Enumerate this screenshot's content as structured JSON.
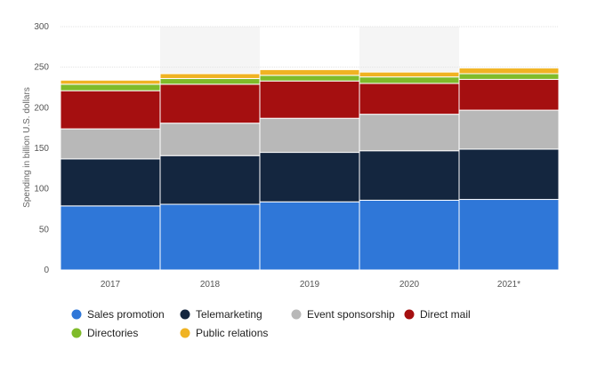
{
  "chart_data": {
    "type": "bar",
    "stacked": true,
    "categories": [
      "2017",
      "2018",
      "2019",
      "2020",
      "2021*"
    ],
    "ylabel": "Spending in billion U.S. dollars",
    "xlabel": "",
    "ylim": [
      0,
      300
    ],
    "yticks": [
      0,
      50,
      100,
      150,
      200,
      250,
      300
    ],
    "grid": true,
    "legend_position": "bottom",
    "series": [
      {
        "name": "Sales promotion",
        "color": "#2f77d8",
        "values": [
          79,
          81,
          84,
          86,
          87
        ]
      },
      {
        "name": "Telemarketing",
        "color": "#14263f",
        "values": [
          58,
          60,
          61,
          61,
          62
        ]
      },
      {
        "name": "Event sponsorship",
        "color": "#b8b8b8",
        "values": [
          37,
          40,
          42,
          45,
          48
        ]
      },
      {
        "name": "Direct mail",
        "color": "#a50f10",
        "values": [
          47,
          48,
          46,
          38,
          38
        ]
      },
      {
        "name": "Directories",
        "color": "#7fbb2a",
        "values": [
          8,
          7,
          7,
          8,
          7
        ]
      },
      {
        "name": "Public relations",
        "color": "#f0b323",
        "values": [
          5,
          6,
          7,
          6,
          7
        ]
      }
    ]
  }
}
